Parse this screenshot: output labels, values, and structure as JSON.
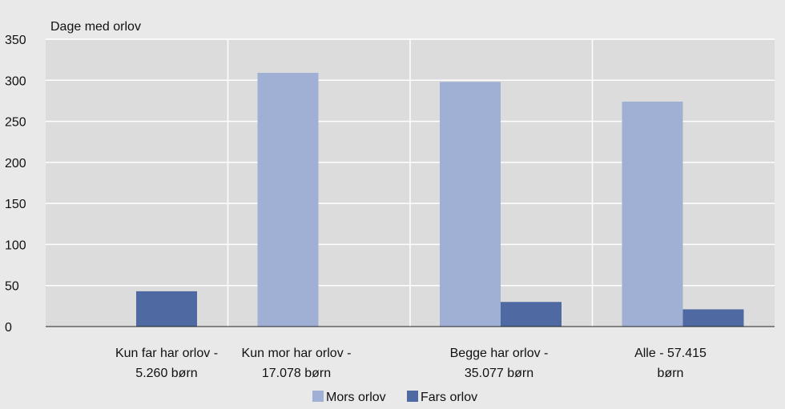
{
  "chart_data": {
    "type": "bar",
    "ylabel": "Dage med orlov",
    "ylim": [
      0,
      350
    ],
    "yticks": [
      "0",
      "50",
      "100",
      "150",
      "200",
      "250",
      "300",
      "350"
    ],
    "categories": [
      [
        "Kun far har orlov -",
        "5.260 børn"
      ],
      [
        "Kun mor har orlov -",
        "17.078 børn"
      ],
      [
        "Begge har orlov -",
        "35.077 børn"
      ],
      [
        "Alle - 57.415",
        "børn"
      ]
    ],
    "series": [
      {
        "name": "Mors orlov",
        "color": "#9fb0d4",
        "values": [
          0,
          309,
          298,
          274
        ]
      },
      {
        "name": "Fars orlov",
        "color": "#4f6aa3",
        "values": [
          43,
          0,
          30,
          21
        ]
      }
    ],
    "grid": true,
    "legend_position": "bottom-center"
  }
}
